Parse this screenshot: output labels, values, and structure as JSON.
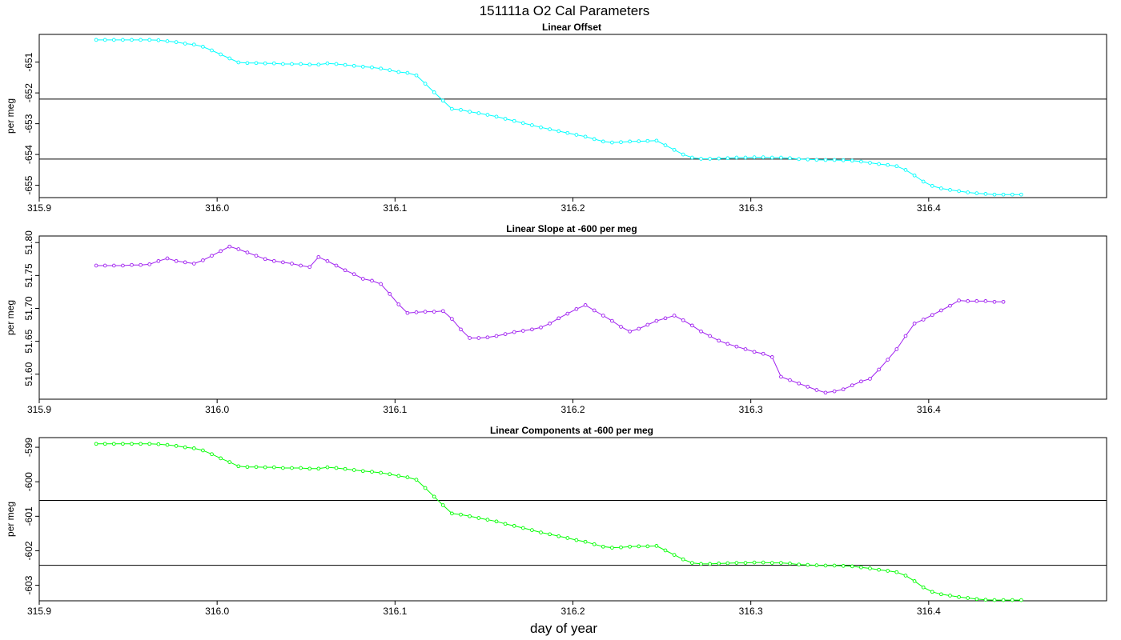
{
  "title": "151111a   O2 Cal Parameters",
  "xlabel": "day of year",
  "chart_data": [
    {
      "type": "line",
      "title": "Linear Offset",
      "ylabel": "per meg",
      "color": "#00ffff",
      "xlim": [
        315.9,
        316.5
      ],
      "ylim": [
        -655.4,
        -650.1
      ],
      "xticks": [
        "315.9",
        "316.0",
        "316.1",
        "316.2",
        "316.3",
        "316.4"
      ],
      "yticks": [
        "-651",
        "-652",
        "-653",
        "-654",
        "-655"
      ],
      "hlines": [
        -652.2,
        -654.15
      ],
      "x_start": 315.932,
      "x_step": 0.005,
      "values": [
        -650.28,
        -650.28,
        -650.28,
        -650.28,
        -650.28,
        -650.28,
        -650.28,
        -650.29,
        -650.32,
        -650.35,
        -650.4,
        -650.43,
        -650.5,
        -650.62,
        -650.75,
        -650.88,
        -651.01,
        -651.03,
        -651.03,
        -651.04,
        -651.04,
        -651.06,
        -651.06,
        -651.06,
        -651.08,
        -651.08,
        -651.04,
        -651.06,
        -651.09,
        -651.12,
        -651.15,
        -651.17,
        -651.21,
        -651.26,
        -651.32,
        -651.35,
        -651.43,
        -651.7,
        -651.98,
        -652.25,
        -652.52,
        -652.55,
        -652.61,
        -652.66,
        -652.71,
        -652.77,
        -652.84,
        -652.91,
        -652.98,
        -653.05,
        -653.12,
        -653.18,
        -653.24,
        -653.3,
        -653.36,
        -653.42,
        -653.5,
        -653.58,
        -653.61,
        -653.6,
        -653.58,
        -653.57,
        -653.56,
        -653.55,
        -653.7,
        -653.85,
        -654.0,
        -654.1,
        -654.14,
        -654.14,
        -654.13,
        -654.12,
        -654.1,
        -654.1,
        -654.09,
        -654.09,
        -654.1,
        -654.1,
        -654.12,
        -654.15,
        -654.16,
        -654.17,
        -654.18,
        -654.18,
        -654.19,
        -654.2,
        -654.23,
        -654.27,
        -654.31,
        -654.34,
        -654.38,
        -654.5,
        -654.68,
        -654.88,
        -655.02,
        -655.1,
        -655.15,
        -655.19,
        -655.23,
        -655.26,
        -655.28,
        -655.3,
        -655.3,
        -655.3,
        -655.3
      ]
    },
    {
      "type": "line",
      "title": "Linear Slope at -600 per meg",
      "ylabel": "per meg",
      "color": "#a020f0",
      "xlim": [
        315.9,
        316.5
      ],
      "ylim": [
        51.562,
        51.81
      ],
      "xticks": [
        "315.9",
        "316.0",
        "316.1",
        "316.2",
        "316.3",
        "316.4"
      ],
      "yticks": [
        "51.60",
        "51.65",
        "51.70",
        "51.75",
        "51.80"
      ],
      "yticks_values": [
        51.6,
        51.65,
        51.7,
        51.75,
        51.8
      ],
      "hlines": [],
      "x_start": 315.932,
      "x_step": 0.005,
      "values": [
        51.765,
        51.765,
        51.765,
        51.765,
        51.766,
        51.766,
        51.767,
        51.772,
        51.776,
        51.772,
        51.77,
        51.768,
        51.773,
        51.78,
        51.787,
        51.794,
        51.79,
        51.785,
        51.78,
        51.775,
        51.772,
        51.77,
        51.768,
        51.765,
        51.763,
        51.778,
        51.772,
        51.765,
        51.758,
        51.752,
        51.745,
        51.742,
        51.737,
        51.722,
        51.706,
        51.693,
        51.694,
        51.695,
        51.695,
        51.696,
        51.684,
        51.668,
        51.655,
        51.655,
        51.656,
        51.658,
        51.661,
        51.664,
        51.666,
        51.668,
        51.671,
        51.677,
        51.685,
        51.692,
        51.699,
        51.705,
        51.697,
        51.689,
        51.681,
        51.672,
        51.665,
        51.669,
        51.675,
        51.681,
        51.685,
        51.689,
        51.682,
        51.674,
        51.665,
        51.658,
        51.651,
        51.646,
        51.642,
        51.638,
        51.634,
        51.631,
        51.626,
        51.596,
        51.591,
        51.586,
        51.581,
        51.576,
        51.572,
        51.574,
        51.577,
        51.583,
        51.589,
        51.593,
        51.607,
        51.622,
        51.638,
        51.658,
        51.677,
        51.683,
        51.69,
        51.697,
        51.704,
        51.712,
        51.711,
        51.711,
        51.711,
        51.71,
        51.71
      ]
    },
    {
      "type": "line",
      "title": "Linear Components at -600 per meg",
      "ylabel": "per meg",
      "color": "#00ff00",
      "xlim": [
        315.9,
        316.5
      ],
      "ylim": [
        -603.45,
        -598.72
      ],
      "xticks": [
        "315.9",
        "316.0",
        "316.1",
        "316.2",
        "316.3",
        "316.4"
      ],
      "yticks": [
        "-599",
        "-600",
        "-601",
        "-602",
        "-603"
      ],
      "hlines": [
        -600.54,
        -602.42
      ],
      "x_start": 315.932,
      "x_step": 0.005,
      "values": [
        -598.9,
        -598.9,
        -598.9,
        -598.9,
        -598.9,
        -598.9,
        -598.9,
        -598.91,
        -598.93,
        -598.96,
        -599.0,
        -599.03,
        -599.09,
        -599.2,
        -599.32,
        -599.43,
        -599.55,
        -599.57,
        -599.57,
        -599.58,
        -599.58,
        -599.6,
        -599.6,
        -599.6,
        -599.62,
        -599.62,
        -599.58,
        -599.6,
        -599.63,
        -599.66,
        -599.69,
        -599.71,
        -599.74,
        -599.78,
        -599.83,
        -599.87,
        -599.94,
        -600.18,
        -600.43,
        -600.68,
        -600.92,
        -600.95,
        -601.0,
        -601.05,
        -601.1,
        -601.15,
        -601.22,
        -601.28,
        -601.34,
        -601.4,
        -601.47,
        -601.52,
        -601.58,
        -601.63,
        -601.69,
        -601.74,
        -601.81,
        -601.88,
        -601.91,
        -601.9,
        -601.88,
        -601.87,
        -601.87,
        -601.86,
        -601.99,
        -602.12,
        -602.25,
        -602.35,
        -602.38,
        -602.38,
        -602.37,
        -602.36,
        -602.35,
        -602.35,
        -602.34,
        -602.34,
        -602.35,
        -602.35,
        -602.37,
        -602.4,
        -602.41,
        -602.42,
        -602.43,
        -602.43,
        -602.44,
        -602.45,
        -602.48,
        -602.51,
        -602.55,
        -602.58,
        -602.62,
        -602.72,
        -602.88,
        -603.06,
        -603.19,
        -603.26,
        -603.3,
        -603.34,
        -603.37,
        -603.4,
        -603.42,
        -603.43,
        -603.43,
        -603.43,
        -603.43
      ]
    }
  ]
}
